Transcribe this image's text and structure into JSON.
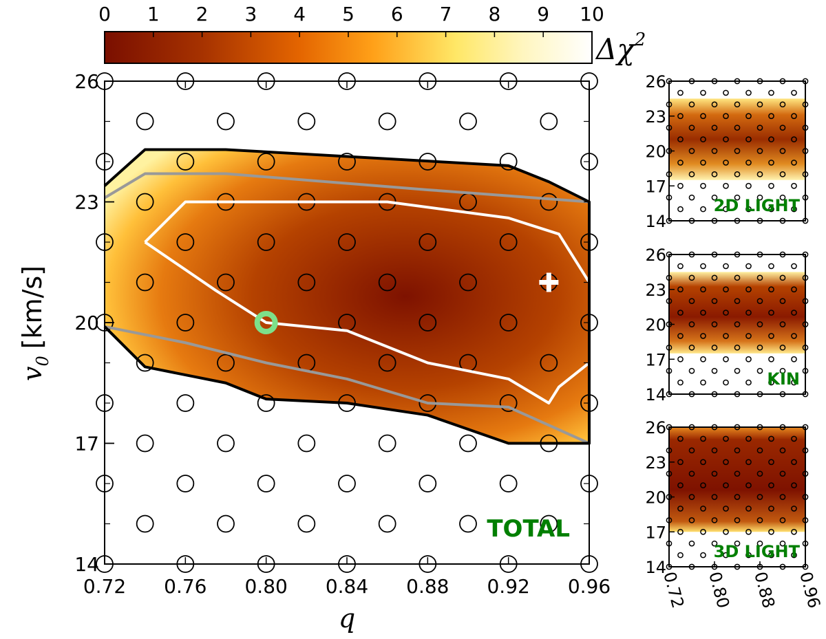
{
  "colorbar": {
    "ticks": [
      "0",
      "1",
      "2",
      "3",
      "4",
      "5",
      "6",
      "7",
      "8",
      "9",
      "10"
    ],
    "label_base": "Δχ",
    "label_sup": "2",
    "range": [
      0,
      10
    ]
  },
  "chart_data": [
    {
      "type": "heatmap",
      "panel": "main",
      "title": "TOTAL",
      "xlabel": "q",
      "ylabel_sym": "v",
      "ylabel_sub": "0",
      "ylabel_unit": "[km/s]",
      "xlim": [
        0.72,
        0.96
      ],
      "ylim": [
        14,
        26
      ],
      "xtick_values": [
        0.72,
        0.76,
        0.8,
        0.84,
        0.88,
        0.92,
        0.96
      ],
      "xtick_labels": [
        "0.72",
        "0.76",
        "0.80",
        "0.84",
        "0.88",
        "0.92",
        "0.96"
      ],
      "ytick_values": [
        14,
        17,
        20,
        23,
        26
      ],
      "ytick_labels": [
        "14",
        "17",
        "20",
        "23",
        "26"
      ],
      "grid_q": [
        0.72,
        0.74,
        0.76,
        0.78,
        0.8,
        0.82,
        0.84,
        0.86,
        0.88,
        0.9,
        0.92,
        0.94,
        0.96
      ],
      "grid_v": [
        14,
        15,
        16,
        17,
        18,
        19,
        20,
        21,
        22,
        23,
        24,
        25,
        26
      ],
      "best_fit": {
        "q": 0.94,
        "v0": 21
      },
      "reference_model": {
        "q": 0.8,
        "v0": 20
      },
      "contours": [
        {
          "name": "inner (white)",
          "color": "#ffffff",
          "points": [
            [
              0.74,
              22
            ],
            [
              0.76,
              23
            ],
            [
              0.86,
              23
            ],
            [
              0.92,
              22.6
            ],
            [
              0.945,
              22.2
            ],
            [
              0.96,
              21
            ],
            [
              0.96,
              19
            ],
            [
              0.945,
              18.4
            ],
            [
              0.94,
              18
            ],
            [
              0.92,
              18.6
            ],
            [
              0.88,
              19
            ],
            [
              0.84,
              19.8
            ],
            [
              0.8,
              20
            ],
            [
              0.775,
              20.8
            ],
            [
              0.74,
              22
            ]
          ]
        },
        {
          "name": "middle (gray)",
          "color": "#999999",
          "points": [
            [
              0.72,
              23.1
            ],
            [
              0.74,
              23.7
            ],
            [
              0.78,
              23.7
            ],
            [
              0.88,
              23.3
            ],
            [
              0.96,
              23
            ],
            [
              0.96,
              17
            ],
            [
              0.92,
              17.9
            ],
            [
              0.88,
              18
            ],
            [
              0.84,
              18.6
            ],
            [
              0.8,
              19
            ],
            [
              0.76,
              19.5
            ],
            [
              0.72,
              19.9
            ]
          ]
        },
        {
          "name": "outer (black)",
          "color": "#000000",
          "points": [
            [
              0.72,
              23.4
            ],
            [
              0.74,
              24.3
            ],
            [
              0.78,
              24.3
            ],
            [
              0.92,
              23.9
            ],
            [
              0.94,
              23.5
            ],
            [
              0.96,
              23
            ],
            [
              0.96,
              17
            ],
            [
              0.92,
              17
            ],
            [
              0.88,
              17.7
            ],
            [
              0.84,
              18
            ],
            [
              0.8,
              18.1
            ],
            [
              0.78,
              18.5
            ],
            [
              0.74,
              18.9
            ],
            [
              0.72,
              19.9
            ]
          ]
        }
      ]
    },
    {
      "type": "heatmap",
      "panel": "inset",
      "title": "2D LIGHT",
      "xlim": [
        0.72,
        0.96
      ],
      "ylim": [
        14,
        26
      ],
      "ytick_values": [
        14,
        17,
        20,
        23,
        26
      ],
      "ytick_labels": [
        "14",
        "17",
        "20",
        "23",
        "26"
      ],
      "xtick_values": [
        0.72,
        0.8,
        0.88,
        0.96
      ],
      "xtick_labels": [
        "0.72",
        "0.80",
        "0.88",
        "0.96"
      ],
      "region_v": [
        17.5,
        24.5
      ]
    },
    {
      "type": "heatmap",
      "panel": "inset",
      "title": "KIN",
      "xlim": [
        0.72,
        0.96
      ],
      "ylim": [
        14,
        26
      ],
      "ytick_values": [
        14,
        17,
        20,
        23,
        26
      ],
      "ytick_labels": [
        "14",
        "17",
        "20",
        "23",
        "26"
      ],
      "xtick_values": [
        0.72,
        0.8,
        0.88,
        0.96
      ],
      "xtick_labels": [
        "0.72",
        "0.80",
        "0.88",
        "0.96"
      ],
      "region_v": [
        17.5,
        24.5
      ]
    },
    {
      "type": "heatmap",
      "panel": "inset",
      "title": "3D LIGHT",
      "xlim": [
        0.72,
        0.96
      ],
      "ylim": [
        14,
        26
      ],
      "ytick_values": [
        14,
        17,
        20,
        23,
        26
      ],
      "ytick_labels": [
        "14",
        "17",
        "20",
        "23",
        "26"
      ],
      "xtick_values": [
        0.72,
        0.8,
        0.88,
        0.96
      ],
      "xtick_labels": [
        "0.72",
        "0.80",
        "0.88",
        "0.96"
      ],
      "region_v": [
        17,
        26
      ]
    }
  ],
  "colors": {
    "label_green": "#007f00",
    "reference_marker": "#7de08a",
    "best_fit_marker": "#ffffff"
  }
}
